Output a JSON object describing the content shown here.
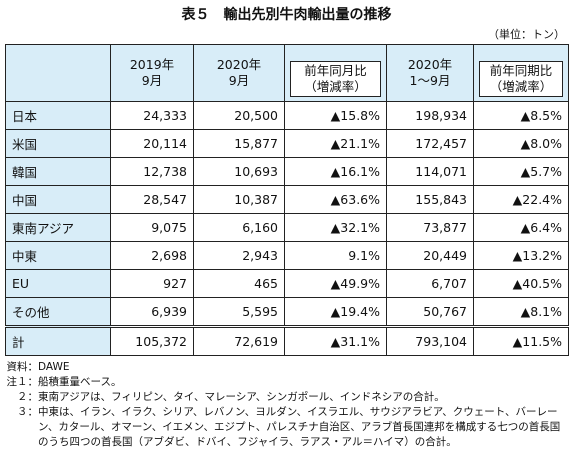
{
  "header": {
    "title": "表５　輸出先別牛肉輸出量の推移",
    "unit": "（単位：トン）"
  },
  "table": {
    "columns": [
      "",
      "2019年\n9月",
      "2020年\n9月",
      "前年同月比\n（増減率）",
      "2020年\n1～9月",
      "前年同期比\n（増減率）"
    ],
    "rows": [
      [
        "日本",
        "24,333",
        "20,500",
        "▲15.8%",
        "198,934",
        "▲8.5%"
      ],
      [
        "米国",
        "20,114",
        "15,877",
        "▲21.1%",
        "172,457",
        "▲8.0%"
      ],
      [
        "韓国",
        "12,738",
        "10,693",
        "▲16.1%",
        "114,071",
        "▲5.7%"
      ],
      [
        "中国",
        "28,547",
        "10,387",
        "▲63.6%",
        "155,843",
        "▲22.4%"
      ],
      [
        "東南アジア",
        "9,075",
        "6,160",
        "▲32.1%",
        "73,877",
        "▲6.4%"
      ],
      [
        "中東",
        "2,698",
        "2,943",
        "9.1%",
        "20,449",
        "▲13.2%"
      ],
      [
        "EU",
        "927",
        "465",
        "▲49.9%",
        "6,707",
        "▲40.5%"
      ],
      [
        "その他",
        "6,939",
        "5,595",
        "▲19.4%",
        "50,767",
        "▲8.1%"
      ],
      [
        "計",
        "105,372",
        "72,619",
        "▲31.1%",
        "793,104",
        "▲11.5%"
      ]
    ]
  },
  "notes": [
    {
      "label": "資料：",
      "text": "DAWE"
    },
    {
      "label": "注１：",
      "text": "船積重量ベース。"
    },
    {
      "label": "２：",
      "text": "東南アジアは、フィリピン、タイ、マレーシア、シンガポール、インドネシアの合計。"
    },
    {
      "label": "３：",
      "text": "中東は、イラン、イラク、シリア、レバノン、ヨルダン、イスラエル、サウジアラビア、クウェート、バーレーン、カタール、オマーン、イエメン、エジプト、パレスチナ自治区、アラブ首長国連邦を構成する七つの首長国のうち四つの首長国（アブダビ、ドバイ、フジャイラ、ラアス・アル＝ハイマ）の合計。"
    }
  ]
}
